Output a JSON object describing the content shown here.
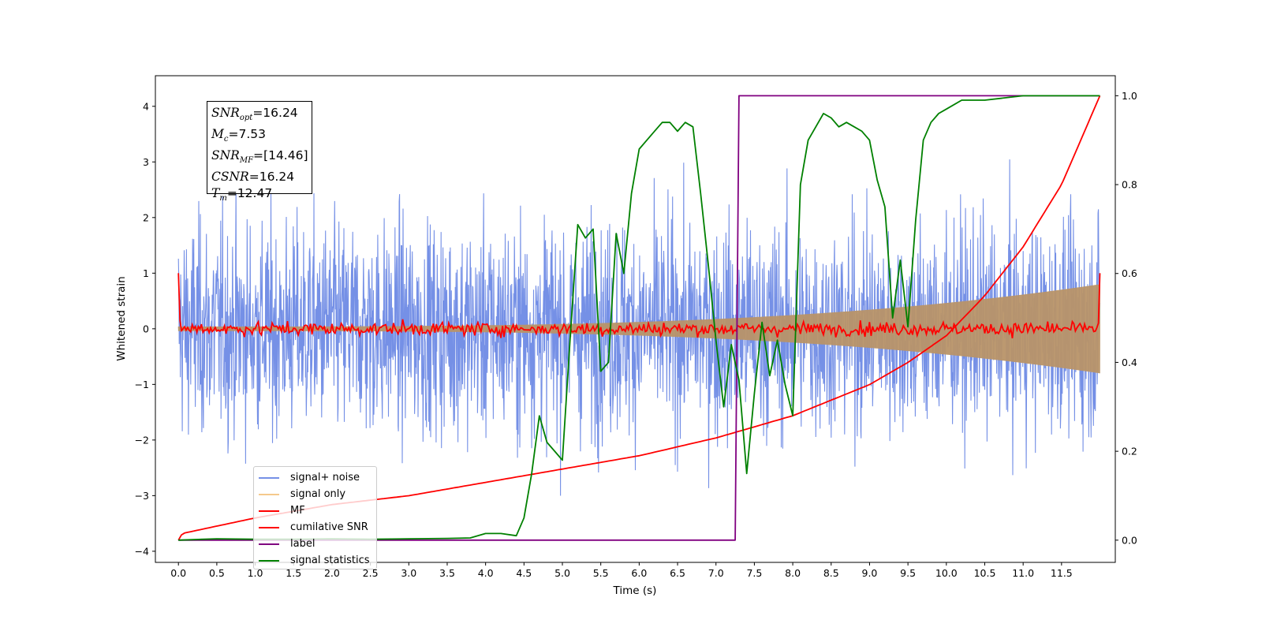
{
  "chart_data": {
    "type": "line",
    "xlabel": "Time (s)",
    "ylabel": "Whitened strain",
    "x_ticks": [
      "0.0",
      "0.5",
      "1.0",
      "1.5",
      "2.0",
      "2.5",
      "3.0",
      "3.5",
      "4.0",
      "4.5",
      "5.0",
      "5.5",
      "6.0",
      "6.5",
      "7.0",
      "7.5",
      "8.0",
      "8.5",
      "9.0",
      "9.5",
      "10.0",
      "10.5",
      "11.0",
      "11.5"
    ],
    "y_ticks_left": [
      "−4",
      "−3",
      "−2",
      "−1",
      "0",
      "1",
      "2",
      "3",
      "4"
    ],
    "y_ticks_right": [
      "0.0",
      "0.2",
      "0.4",
      "0.6",
      "0.8",
      "1.0"
    ],
    "xlim": [
      -0.3,
      12.2
    ],
    "ylim_left": [
      -4.2,
      4.55
    ],
    "ylim_right": [
      -0.05,
      1.045
    ],
    "grid": false,
    "legend_placement": "lower-left",
    "info_box": {
      "snr_opt_label": "SNR",
      "snr_opt_sub": "opt",
      "snr_opt_value": "=16.24",
      "mc_label": "M",
      "mc_sub": "c",
      "mc_value": "=7.53",
      "snr_mf_label": "SNR",
      "snr_mf_sub": "MF",
      "snr_mf_value": "=[14.46]",
      "csnr_label": "CSNR",
      "csnr_value": "=16.24",
      "tm_label": "T",
      "tm_sub": "m",
      "tm_value": "=12.47"
    },
    "series": [
      {
        "name": "signal+ noise",
        "color": "#7590e6",
        "axis": "left",
        "t_range": [
          0,
          12.0
        ],
        "amplitude_std": 1.0
      },
      {
        "name": "signal only",
        "color": "#f5c98c",
        "axis": "left",
        "t_range": [
          0,
          12.0
        ],
        "envelope_start": 0.04,
        "envelope_end": 0.8
      },
      {
        "name": "MF",
        "color": "#ff0000",
        "axis": "left",
        "t_range": [
          0,
          12.0
        ],
        "start_value": 1.0,
        "end_value": 1.0,
        "noise_amplitude": 0.06
      },
      {
        "name": "cumilative SNR",
        "color": "#ff0000",
        "axis": "right",
        "x": [
          0.0,
          0.05,
          1,
          2,
          3,
          4,
          5,
          6,
          7,
          8,
          9,
          9.5,
          10,
          10.5,
          11,
          11.5,
          12.0
        ],
        "y": [
          0.0,
          0.015,
          0.05,
          0.08,
          0.1,
          0.13,
          0.16,
          0.19,
          0.23,
          0.28,
          0.35,
          0.4,
          0.46,
          0.55,
          0.66,
          0.8,
          1.0
        ]
      },
      {
        "name": "label",
        "color": "#800080",
        "axis": "right",
        "x": [
          0.0,
          7.25,
          7.3,
          12.0
        ],
        "y": [
          0.0,
          0.0,
          1.0,
          1.0
        ]
      },
      {
        "name": "signal statistics",
        "color": "#008000",
        "axis": "right",
        "x": [
          0.0,
          0.5,
          1.0,
          1.5,
          2.0,
          2.5,
          3.0,
          3.5,
          3.8,
          4.0,
          4.2,
          4.4,
          4.5,
          4.6,
          4.7,
          4.8,
          4.9,
          5.0,
          5.1,
          5.2,
          5.3,
          5.4,
          5.5,
          5.6,
          5.7,
          5.8,
          5.9,
          6.0,
          6.1,
          6.2,
          6.3,
          6.4,
          6.5,
          6.6,
          6.7,
          6.8,
          6.9,
          7.0,
          7.1,
          7.2,
          7.3,
          7.4,
          7.5,
          7.6,
          7.7,
          7.8,
          7.9,
          8.0,
          8.1,
          8.2,
          8.3,
          8.4,
          8.5,
          8.6,
          8.7,
          8.8,
          8.9,
          9.0,
          9.1,
          9.2,
          9.3,
          9.4,
          9.5,
          9.6,
          9.7,
          9.8,
          9.9,
          10.0,
          10.2,
          10.5,
          11.0,
          11.5,
          12.0
        ],
        "y": [
          0.0,
          0.003,
          0.002,
          0.002,
          0.003,
          0.002,
          0.003,
          0.004,
          0.005,
          0.015,
          0.015,
          0.01,
          0.05,
          0.15,
          0.28,
          0.22,
          0.2,
          0.18,
          0.45,
          0.71,
          0.68,
          0.7,
          0.38,
          0.4,
          0.69,
          0.6,
          0.78,
          0.88,
          0.9,
          0.92,
          0.94,
          0.94,
          0.92,
          0.94,
          0.93,
          0.78,
          0.62,
          0.45,
          0.3,
          0.44,
          0.36,
          0.15,
          0.33,
          0.49,
          0.37,
          0.45,
          0.35,
          0.28,
          0.8,
          0.9,
          0.93,
          0.96,
          0.95,
          0.93,
          0.94,
          0.93,
          0.92,
          0.9,
          0.81,
          0.75,
          0.5,
          0.63,
          0.48,
          0.72,
          0.9,
          0.94,
          0.96,
          0.97,
          0.99,
          0.99,
          1.0,
          1.0,
          1.0
        ]
      }
    ]
  }
}
